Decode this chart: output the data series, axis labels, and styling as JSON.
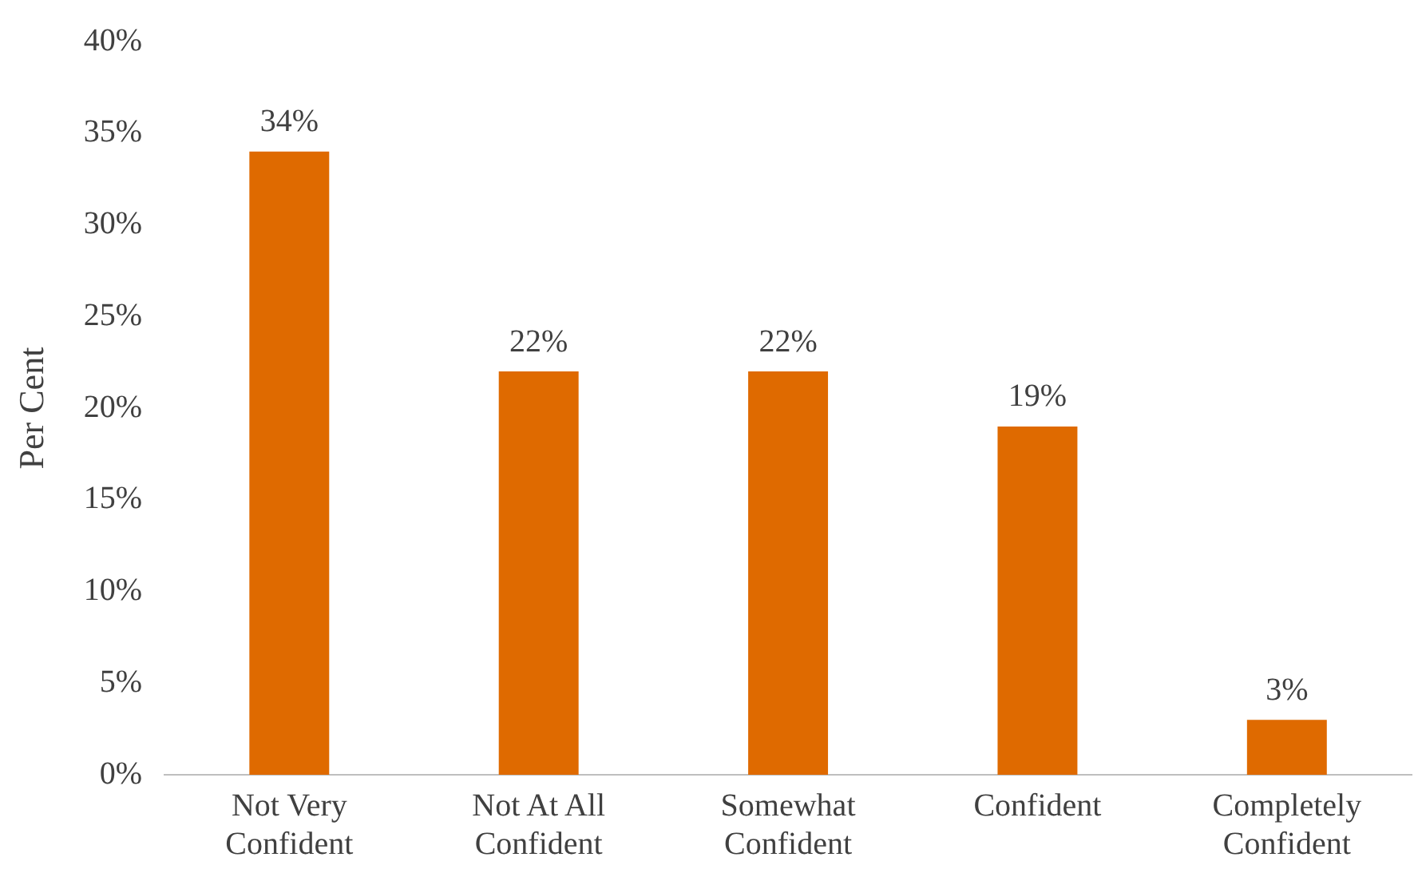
{
  "chart_data": {
    "type": "bar",
    "ylabel": "Per Cent",
    "categories": [
      "Not Very Confident",
      "Not At All Confident",
      "Somewhat Confident",
      "Confident",
      "Completely Confident"
    ],
    "values": [
      34,
      22,
      22,
      19,
      3
    ],
    "value_labels": [
      "34%",
      "22%",
      "22%",
      "19%",
      "3%"
    ],
    "color": "#df6a00",
    "ylim": [
      0,
      40
    ],
    "yticks": [
      {
        "value": 0,
        "label": "0%"
      },
      {
        "value": 5,
        "label": "5%"
      },
      {
        "value": 10,
        "label": "10%"
      },
      {
        "value": 15,
        "label": "15%"
      },
      {
        "value": 20,
        "label": "20%"
      },
      {
        "value": 25,
        "label": "25%"
      },
      {
        "value": 30,
        "label": "30%"
      },
      {
        "value": 35,
        "label": "35%"
      },
      {
        "value": 40,
        "label": "40%"
      }
    ],
    "grid": false,
    "legend": false
  }
}
